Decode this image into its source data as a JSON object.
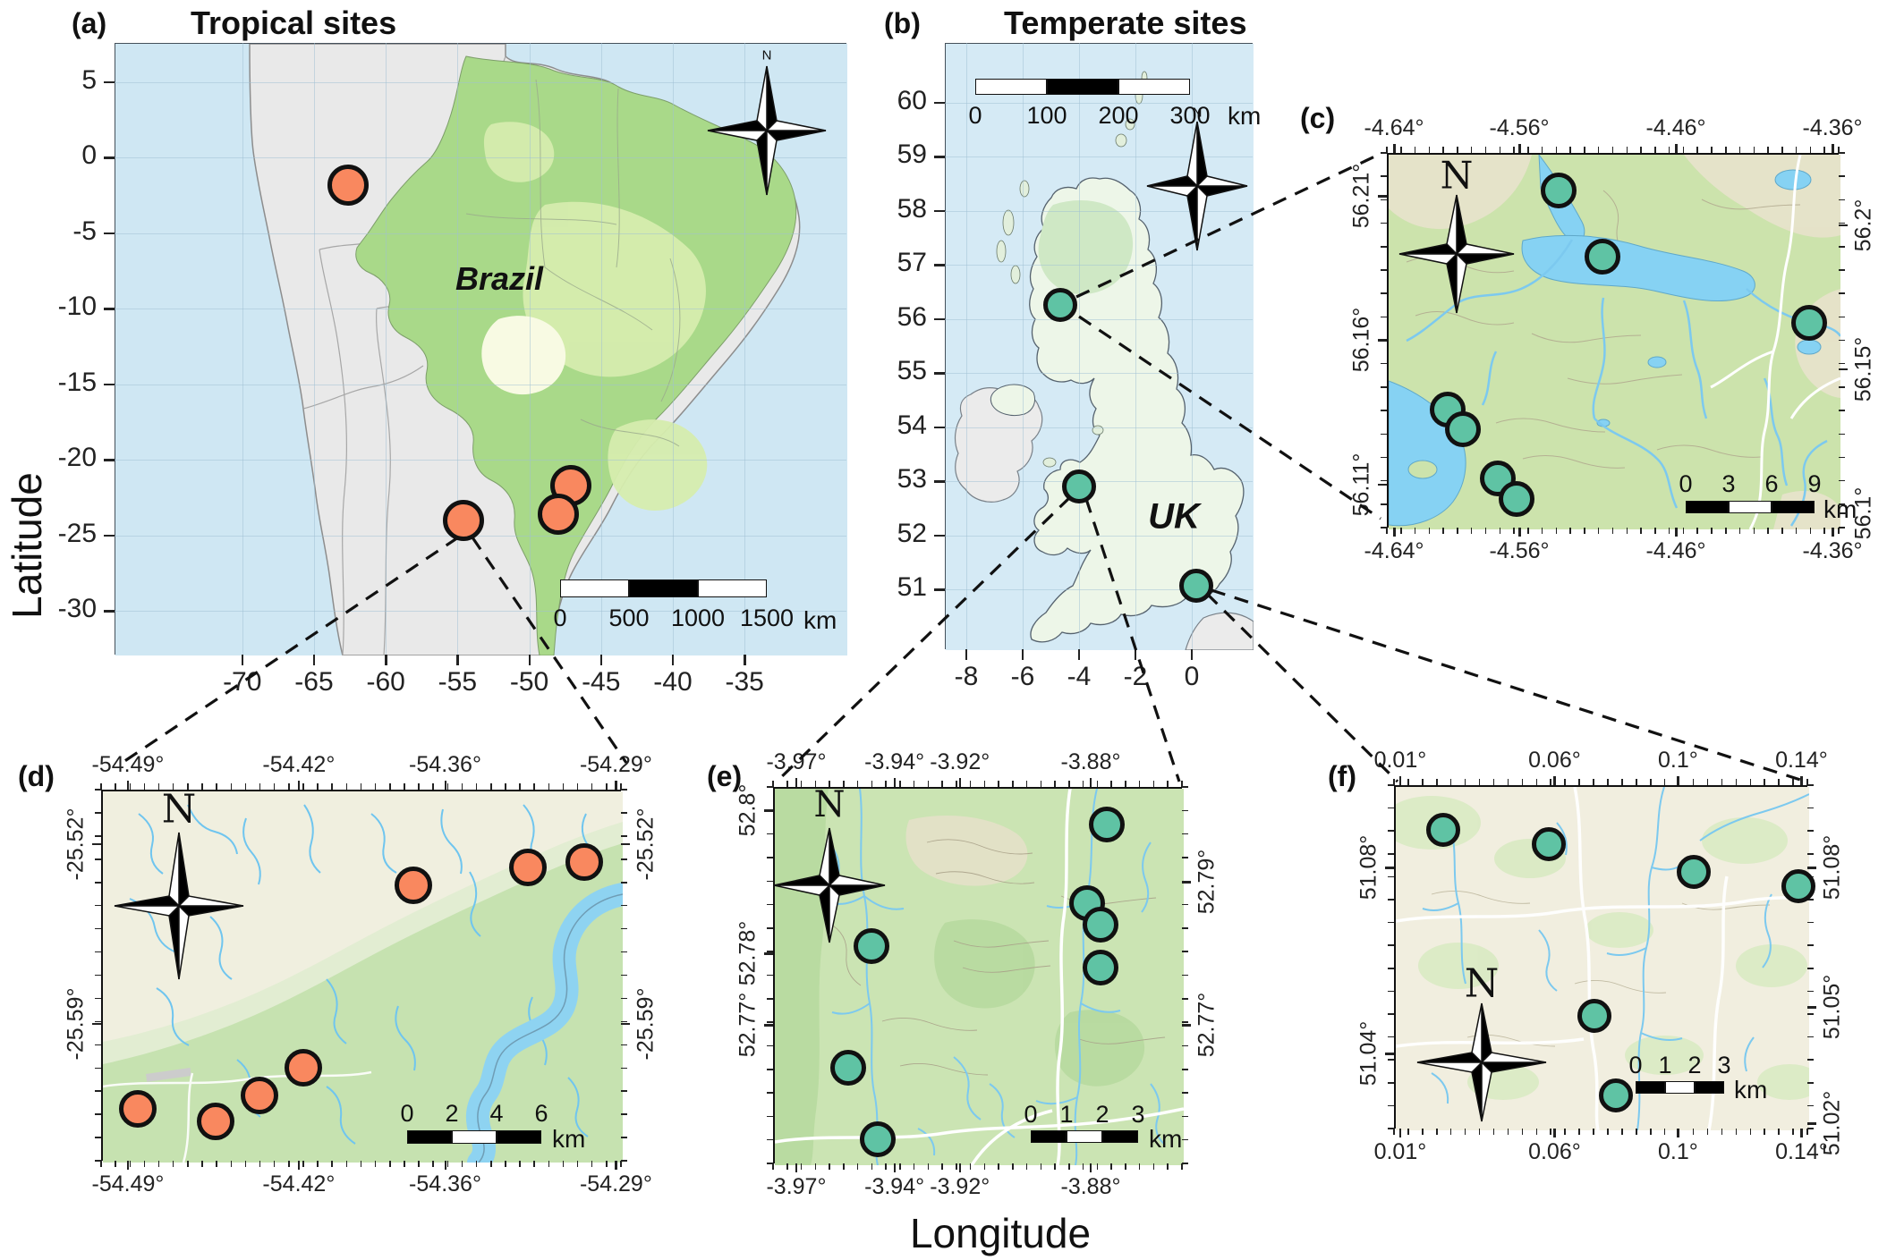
{
  "compass_label": "N",
  "axis_titles": {
    "y": "Latitude",
    "x": "Longitude"
  },
  "colors": {
    "tropical_site": "#F9885F",
    "temperate_site": "#5FC3A4",
    "marker_outline": "#111111",
    "ocean": "#CFE7F3",
    "gray_land": "#E9E9E9",
    "brazil_green": "#A9D989",
    "uk_green": "#EDF6E8",
    "freshwater": "#86D2F3"
  },
  "panels": [
    {
      "id": "a",
      "letter": "(a)",
      "title": "Tropical sites",
      "map_label": "Brazil",
      "marker_color_key": "tropical_site",
      "axes": {
        "bottom": [
          "-70",
          "-65",
          "-60",
          "-55",
          "-50",
          "-45",
          "-40",
          "-35"
        ],
        "left": [
          "5",
          "0",
          "-5",
          "-10",
          "-15",
          "-20",
          "-25",
          "-30"
        ]
      },
      "scalebar": {
        "tick_labels": [
          "0",
          "500",
          "1000",
          "1500"
        ],
        "unit": "km"
      },
      "sites": [
        {
          "lon": -62.6,
          "lat": -1.8
        },
        {
          "lon": -54.6,
          "lat": -24.0
        },
        {
          "lon": -47.1,
          "lat": -21.7
        },
        {
          "lon": -48.0,
          "lat": -23.6
        }
      ]
    },
    {
      "id": "b",
      "letter": "(b)",
      "title": "Temperate sites",
      "map_label": "UK",
      "marker_color_key": "temperate_site",
      "axes": {
        "bottom": [
          "-8",
          "-6",
          "-4",
          "-2",
          "0"
        ],
        "left": [
          "60",
          "59",
          "58",
          "57",
          "56",
          "55",
          "54",
          "53",
          "52",
          "51"
        ]
      },
      "scalebar": {
        "tick_labels": [
          "0",
          "100",
          "200",
          "300"
        ],
        "unit": "km"
      },
      "sites": [
        {
          "lon": -4.67,
          "lat": 56.25
        },
        {
          "lon": -4.0,
          "lat": 52.9
        },
        {
          "lon": 0.16,
          "lat": 51.07
        }
      ]
    },
    {
      "id": "c",
      "letter": "(c)",
      "title": "",
      "map_label": "",
      "marker_color_key": "temperate_site",
      "axes": {
        "top": [
          "-4.64°",
          "-4.56°",
          "-4.46°",
          "-4.36°"
        ],
        "bottom": [
          "-4.64°",
          "-4.56°",
          "-4.46°",
          "-4.36°"
        ],
        "left": [
          "56.21°",
          "56.16°",
          "56.11°"
        ],
        "right": [
          "56.2°",
          "56.15°",
          "56.1°"
        ]
      },
      "scalebar": {
        "tick_labels": [
          "0",
          "3",
          "6",
          "9"
        ],
        "unit": "km"
      },
      "sites": [
        {
          "lon": -4.535,
          "lat": 56.212
        },
        {
          "lon": -4.507,
          "lat": 56.189
        },
        {
          "lon": -4.375,
          "lat": 56.166
        },
        {
          "lon": -4.606,
          "lat": 56.136
        },
        {
          "lon": -4.596,
          "lat": 56.129
        },
        {
          "lon": -4.574,
          "lat": 56.112
        },
        {
          "lon": -4.562,
          "lat": 56.105
        }
      ]
    },
    {
      "id": "d",
      "letter": "(d)",
      "title": "",
      "map_label": "",
      "marker_color_key": "tropical_site",
      "axes": {
        "top": [
          "-54.49°",
          "-54.42°",
          "-54.36°",
          "-54.29°"
        ],
        "bottom": [
          "-54.49°",
          "-54.42°",
          "-54.36°",
          "-54.29°"
        ],
        "left": [
          "-25.52°",
          "-25.59°"
        ],
        "right": [
          "-25.52°",
          "-25.59°"
        ]
      },
      "scalebar": {
        "tick_labels": [
          "0",
          "2",
          "4",
          "6"
        ],
        "unit": "km"
      },
      "sites": [
        {
          "lon": -54.373,
          "lat": -25.536
        },
        {
          "lon": -54.326,
          "lat": -25.529
        },
        {
          "lon": -54.303,
          "lat": -25.527
        },
        {
          "lon": -54.486,
          "lat": -25.623
        },
        {
          "lon": -54.454,
          "lat": -25.628
        },
        {
          "lon": -54.436,
          "lat": -25.618
        },
        {
          "lon": -54.418,
          "lat": -25.607
        }
      ]
    },
    {
      "id": "e",
      "letter": "(e)",
      "title": "",
      "map_label": "",
      "marker_color_key": "temperate_site",
      "axes": {
        "top": [
          "-3.97°",
          "-3.94°",
          "-3.92°",
          "-3.88°"
        ],
        "bottom": [
          "-3.97°",
          "-3.94°",
          "-3.92°",
          "-3.88°"
        ],
        "left": [
          "52.8°",
          "52.78°",
          "52.77°"
        ],
        "right": [
          "52.79°",
          "52.77°"
        ]
      },
      "scalebar": {
        "tick_labels": [
          "0",
          "1",
          "2",
          "3"
        ],
        "unit": "km"
      },
      "sites": [
        {
          "lon": -3.875,
          "lat": 52.798
        },
        {
          "lon": -3.881,
          "lat": 52.787
        },
        {
          "lon": -3.877,
          "lat": 52.784
        },
        {
          "lon": -3.877,
          "lat": 52.778
        },
        {
          "lon": -3.947,
          "lat": 52.781
        },
        {
          "lon": -3.954,
          "lat": 52.764
        },
        {
          "lon": -3.945,
          "lat": 52.754
        }
      ]
    },
    {
      "id": "f",
      "letter": "(f)",
      "title": "",
      "map_label": "",
      "marker_color_key": "temperate_site",
      "axes": {
        "top": [
          "0.01°",
          "0.06°",
          "0.1°",
          "0.14°"
        ],
        "bottom": [
          "0.01°",
          "0.06°",
          "0.1°",
          "0.14°"
        ],
        "left": [
          "51.08°",
          "51.04°"
        ],
        "right": [
          "51.08°",
          "51.05°",
          "51.02°"
        ]
      },
      "scalebar": {
        "tick_labels": [
          "0",
          "1",
          "2",
          "3"
        ],
        "unit": "km"
      },
      "sites": [
        {
          "lon": 0.024,
          "lat": 51.088
        },
        {
          "lon": 0.058,
          "lat": 51.085
        },
        {
          "lon": 0.105,
          "lat": 51.079
        },
        {
          "lon": 0.139,
          "lat": 51.076
        },
        {
          "lon": 0.073,
          "lat": 51.048
        },
        {
          "lon": 0.08,
          "lat": 51.031
        }
      ]
    }
  ]
}
